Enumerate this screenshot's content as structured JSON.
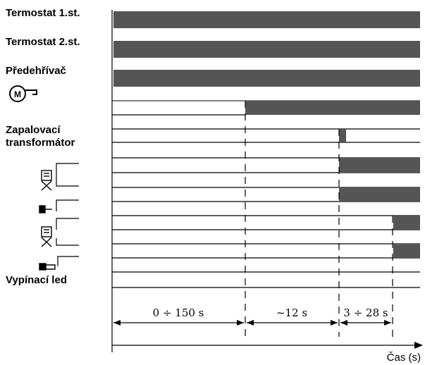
{
  "labels": {
    "thermostat1": "Termostat 1.st.",
    "thermostat2": "Termostat 2.st.",
    "preheater": "Předehřívač",
    "ignition_line1": "Zapalovací",
    "ignition_line2": "transformátor",
    "flame_sensor": "Vypínací led"
  },
  "icons": {
    "motor": "motor-icon",
    "valve1": "solenoid-valve-1-icon",
    "nozzle1": "nozzle-1-icon",
    "valve2": "solenoid-valve-2-icon",
    "nozzle2": "nozzle-2-icon"
  },
  "intervals": [
    "0 ÷ 150 s",
    "~12 s",
    "3 ÷ 28 s"
  ],
  "axis_label": "Čas (s)",
  "colors": {
    "bar": "#555555",
    "line": "#000000"
  },
  "timeline": {
    "thermostat1_on": [
      0,
      1
    ],
    "thermostat2_on": [
      0,
      1
    ],
    "preheater_on": [
      0,
      1
    ],
    "motor_on": [
      0.43,
      1
    ],
    "ignition_on": [
      0.73,
      0.755
    ],
    "valve1_on": [
      0.73,
      1
    ],
    "nozzle1_on": [
      0.73,
      1
    ],
    "valve2_on": [
      0.92,
      1
    ],
    "nozzle2_on": [
      0.92,
      1
    ]
  }
}
